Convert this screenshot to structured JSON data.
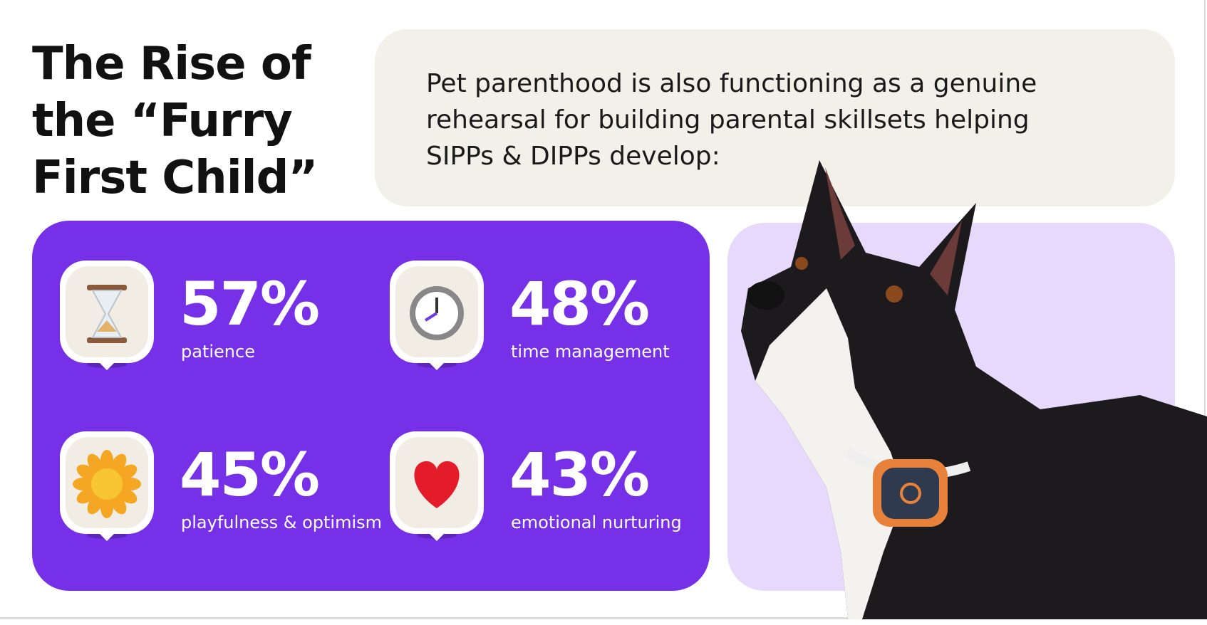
{
  "title": [
    "The Rise of",
    "the “Furry",
    "First Child”"
  ],
  "intro": [
    "Pet parenthood is also functioning as a genuine",
    "rehearsal for building parental skillsets helping",
    "SIPPs & DIPPs develop:"
  ],
  "stats": [
    {
      "value": "57%",
      "label": "patience"
    },
    {
      "value": "48%",
      "label": "time management"
    },
    {
      "value": "45%",
      "label": "playfulness & optimism"
    },
    {
      "value": "43%",
      "label": "emotional nurturing"
    }
  ]
}
